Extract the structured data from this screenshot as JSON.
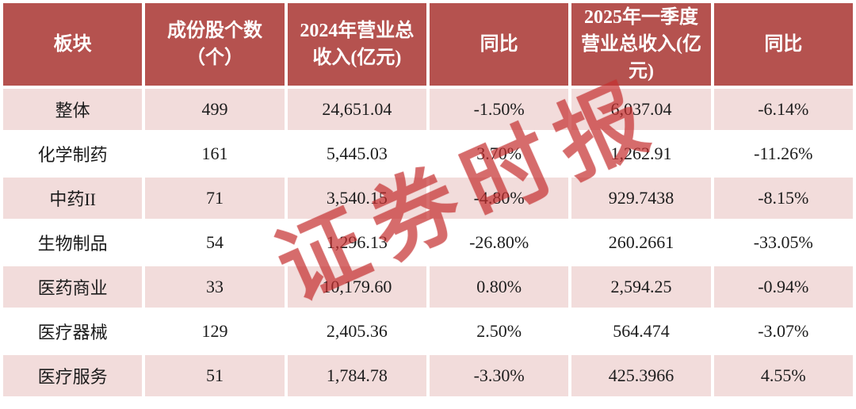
{
  "colors": {
    "header_bg": "#b5524f",
    "header_text": "#ffffff",
    "row_alt_bg": "#f2dcdb",
    "row_bg": "#ffffff",
    "body_text": "#1c1c1c",
    "watermark": "#c53030"
  },
  "watermark": {
    "text": "证券时报"
  },
  "table": {
    "headers": [
      "板块",
      "成份股个数\n（个）",
      "2024年营业总\n收入(亿元)",
      "同比",
      "2025年一季度\n营业总收入(亿\n元)",
      "同比"
    ],
    "rows": [
      {
        "cells": [
          "整体",
          "499",
          "24,651.04",
          "-1.50%",
          "6,037.04",
          "-6.14%"
        ]
      },
      {
        "cells": [
          "化学制药",
          "161",
          "5,445.03",
          "3.70%",
          "1,262.91",
          "-11.26%"
        ]
      },
      {
        "cells": [
          "中药II",
          "71",
          "3,540.15",
          "-4.80%",
          "929.7438",
          "-8.15%"
        ]
      },
      {
        "cells": [
          "生物制品",
          "54",
          "1,296.13",
          "-26.80%",
          "260.2661",
          "-33.05%"
        ]
      },
      {
        "cells": [
          "医药商业",
          "33",
          "10,179.60",
          "0.80%",
          "2,594.25",
          "-0.94%"
        ]
      },
      {
        "cells": [
          "医疗器械",
          "129",
          "2,405.36",
          "2.50%",
          "564.474",
          "-3.07%"
        ]
      },
      {
        "cells": [
          "医疗服务",
          "51",
          "1,784.78",
          "-3.30%",
          "425.3966",
          "4.55%"
        ]
      }
    ]
  },
  "chart_data": {
    "type": "table",
    "title": "",
    "columns": [
      "板块",
      "成份股个数（个）",
      "2024年营业总收入(亿元)",
      "同比",
      "2025年一季度营业总收入(亿元)",
      "同比"
    ],
    "rows": [
      [
        "整体",
        499,
        24651.04,
        "-1.50%",
        6037.04,
        "-6.14%"
      ],
      [
        "化学制药",
        161,
        5445.03,
        "3.70%",
        1262.91,
        "-11.26%"
      ],
      [
        "中药II",
        71,
        3540.15,
        "-4.80%",
        929.7438,
        "-8.15%"
      ],
      [
        "生物制品",
        54,
        1296.13,
        "-26.80%",
        260.2661,
        "-33.05%"
      ],
      [
        "医药商业",
        33,
        10179.6,
        "0.80%",
        2594.25,
        "-0.94%"
      ],
      [
        "医疗器械",
        129,
        2405.36,
        "2.50%",
        564.474,
        "-3.07%"
      ],
      [
        "医疗服务",
        51,
        1784.78,
        "-3.30%",
        425.3966,
        "4.55%"
      ]
    ]
  }
}
